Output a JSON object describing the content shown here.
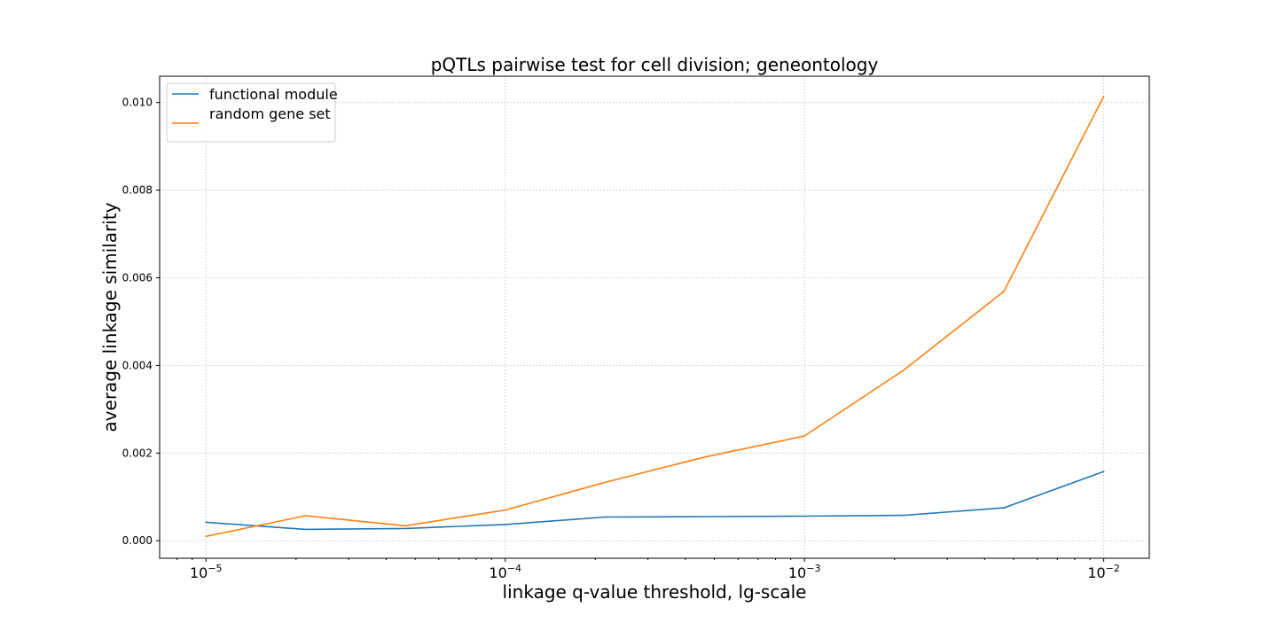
{
  "chart_data": {
    "type": "line",
    "title": "pQTLs pairwise test for cell division; geneontology",
    "xlabel": "linkage q-value threshold, lg-scale",
    "ylabel": "average linkage similarity",
    "xscale": "log",
    "xlim": [
      7e-06,
      0.0142
    ],
    "ylim": [
      -0.0004,
      0.0106
    ],
    "x": [
      1e-05,
      2.154e-05,
      4.642e-05,
      0.0001,
      0.0002154,
      0.0004642,
      0.001,
      0.002154,
      0.004642,
      0.01
    ],
    "series": [
      {
        "name": "functional module",
        "color": "#1f77b4",
        "values": [
          0.00042,
          0.00026,
          0.00028,
          0.00037,
          0.00054,
          0.00055,
          0.00056,
          0.00058,
          0.00075,
          0.00158
        ]
      },
      {
        "name": "random gene set",
        "color": "#ff7f0e",
        "values": [
          0.0001,
          0.00057,
          0.00034,
          0.0007,
          0.00133,
          0.00191,
          0.00239,
          0.0039,
          0.00569,
          0.01014
        ]
      }
    ],
    "yticks": [
      0.0,
      0.002,
      0.004,
      0.006,
      0.008,
      0.01
    ],
    "ytick_labels": [
      "0.000",
      "0.002",
      "0.004",
      "0.006",
      "0.008",
      "0.010"
    ],
    "xticks": [
      1e-05,
      0.0001,
      0.001,
      0.01
    ],
    "xtick_labels": [
      {
        "base": "10",
        "exp": "−5"
      },
      {
        "base": "10",
        "exp": "−4"
      },
      {
        "base": "10",
        "exp": "−3"
      },
      {
        "base": "10",
        "exp": "−2"
      }
    ],
    "grid": true,
    "legend_position": "upper-left"
  }
}
